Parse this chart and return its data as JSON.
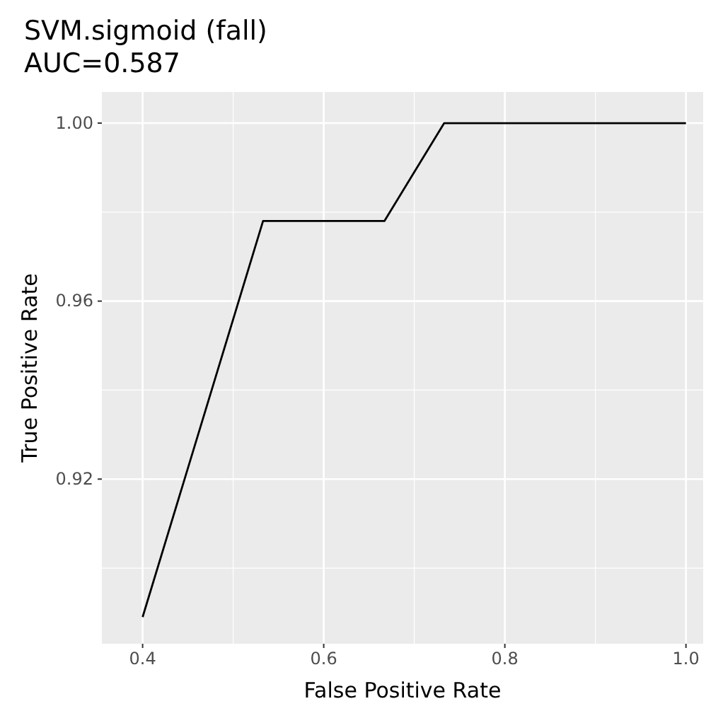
{
  "chart_data": {
    "type": "line",
    "title": "SVM.sigmoid (fall)",
    "subtitle": "AUC=0.587",
    "xlabel": "False Positive Rate",
    "ylabel": "True Positive Rate",
    "x": [
      0.4,
      0.533,
      0.667,
      0.733,
      1.0
    ],
    "series": [
      {
        "color": "#000000",
        "values": [
          0.889,
          0.978,
          0.978,
          1.0,
          1.0
        ]
      }
    ],
    "xlim": [
      0.355,
      1.019
    ],
    "xticks": [
      {
        "value": 0.4,
        "label": "0.4"
      },
      {
        "value": 0.6,
        "label": "0.6"
      },
      {
        "value": 0.8,
        "label": "0.8"
      },
      {
        "value": 1.0,
        "label": "1.0"
      }
    ],
    "ylim": [
      0.883,
      1.007
    ],
    "yticks": [
      {
        "value": 0.92,
        "label": "0.92"
      },
      {
        "value": 0.96,
        "label": "0.96"
      },
      {
        "value": 1.0,
        "label": "1.00"
      }
    ],
    "grid": true,
    "marker": "none",
    "line_style": "solid"
  }
}
